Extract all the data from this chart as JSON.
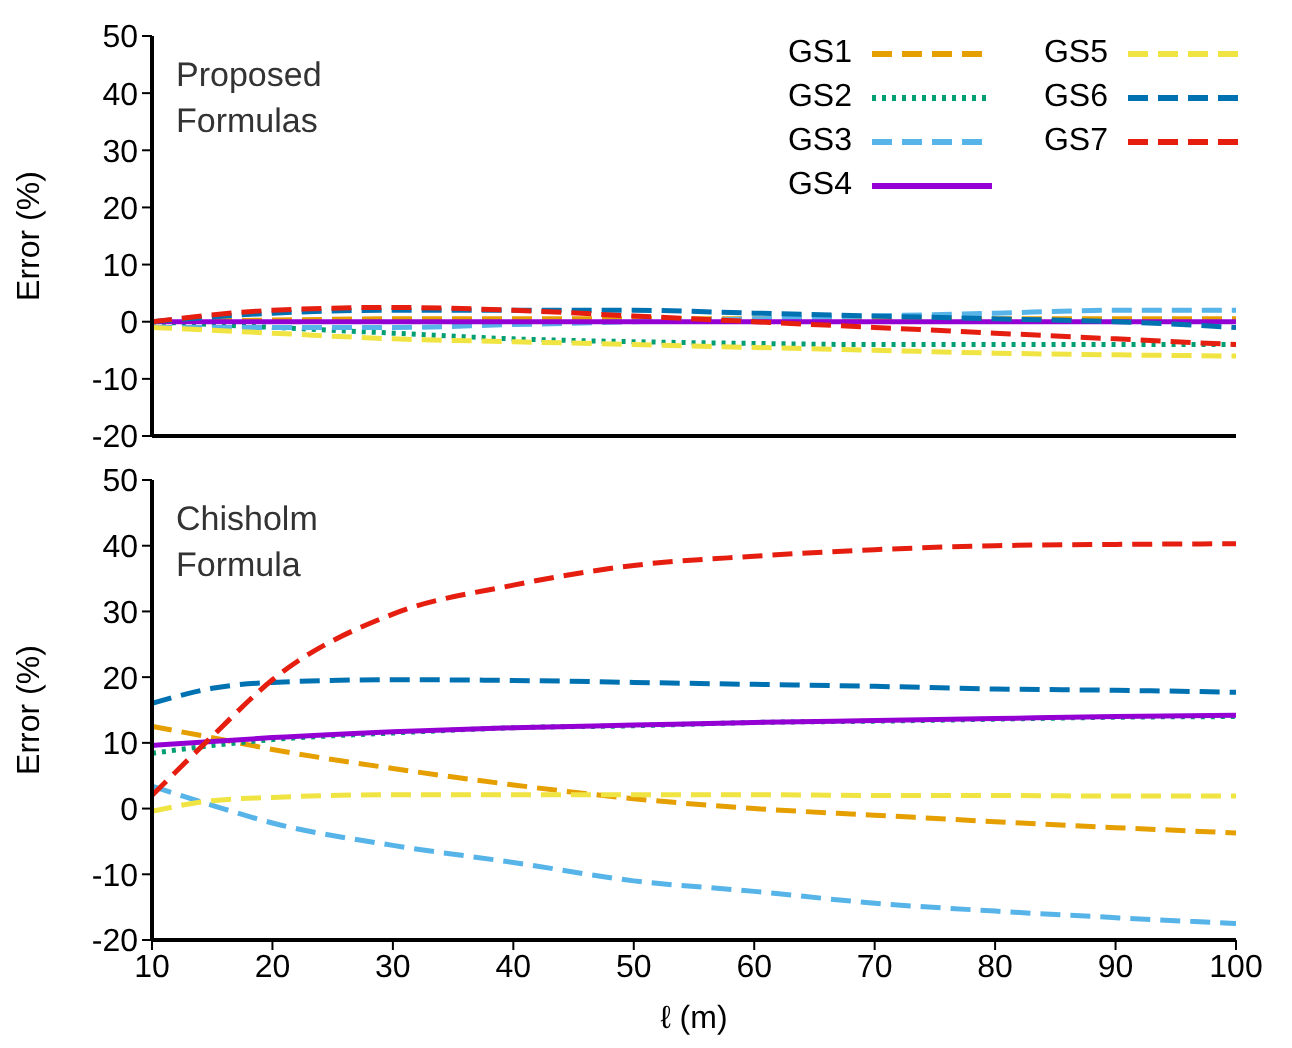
{
  "chart_data": [
    {
      "type": "line",
      "ylabel": "Error (%)",
      "annotations": [
        "Proposed Formulas"
      ],
      "x": [
        10,
        20,
        30,
        40,
        50,
        60,
        70,
        80,
        90,
        100
      ],
      "xlim": [
        10,
        100
      ],
      "xticks": [
        10,
        20,
        30,
        40,
        50,
        60,
        70,
        80,
        90,
        100
      ],
      "ylim": [
        -20,
        50
      ],
      "yticks": [
        -20,
        -10,
        0,
        10,
        20,
        30,
        40,
        50
      ],
      "tick_labels": "y",
      "grid": false,
      "legend": "top right",
      "marker": "none",
      "series": [
        {
          "name": "GS1",
          "color": "#e69f00",
          "line_style": "dashed",
          "values": [
            0,
            0.3,
            0.5,
            0.5,
            0.5,
            0.5,
            0.5,
            0.5,
            0.5,
            0.5
          ]
        },
        {
          "name": "GS2",
          "color": "#009e73",
          "line_style": "dotted",
          "values": [
            0,
            -1,
            -2,
            -3,
            -3.5,
            -3.8,
            -4,
            -4,
            -4,
            -4
          ]
        },
        {
          "name": "GS3",
          "color": "#56b4e9",
          "line_style": "dashed",
          "values": [
            -1,
            -1,
            -1,
            -0.5,
            0,
            0.5,
            1,
            1.5,
            2,
            2
          ]
        },
        {
          "name": "GS4",
          "color": "#9400d3",
          "line_style": "solid",
          "values": [
            0,
            0,
            0,
            0,
            0,
            0,
            0,
            0,
            0,
            0
          ]
        },
        {
          "name": "GS5",
          "color": "#f0e442",
          "line_style": "dashed",
          "values": [
            -1,
            -2,
            -3,
            -3.5,
            -4,
            -4.5,
            -5,
            -5.5,
            -5.8,
            -6
          ]
        },
        {
          "name": "GS6",
          "color": "#0072b2",
          "line_style": "dashed",
          "values": [
            0,
            1.5,
            2,
            2,
            2,
            1.5,
            1,
            0.5,
            0,
            -1
          ]
        },
        {
          "name": "GS7",
          "color": "#e51e10",
          "line_style": "dashed",
          "values": [
            0,
            2,
            2.5,
            2,
            1,
            0,
            -1,
            -2,
            -3,
            -4
          ]
        }
      ]
    },
    {
      "type": "line",
      "xlabel": "ℓ (m)",
      "ylabel": "Error (%)",
      "annotations": [
        "Chisholm Formula"
      ],
      "x": [
        10,
        15,
        20,
        30,
        40,
        50,
        60,
        70,
        80,
        90,
        100
      ],
      "xlim": [
        10,
        100
      ],
      "xticks": [
        10,
        20,
        30,
        40,
        50,
        60,
        70,
        80,
        90,
        100
      ],
      "ylim": [
        -20,
        50
      ],
      "yticks": [
        -20,
        -10,
        0,
        10,
        20,
        30,
        40,
        50
      ],
      "grid": false,
      "marker": "none",
      "series": [
        {
          "color": "#e69f00",
          "line_style": "dashed",
          "values": [
            12.5,
            10.8,
            9,
            6.1,
            3.6,
            1.5,
            0,
            -1,
            -2,
            -2.9,
            -3.7
          ]
        },
        {
          "color": "#009e73",
          "line_style": "dotted",
          "values": [
            8.4,
            9.6,
            10.5,
            11.5,
            12.3,
            12.6,
            13.1,
            13.3,
            13.6,
            13.9,
            14
          ]
        },
        {
          "color": "#56b4e9",
          "line_style": "dashed",
          "values": [
            3.4,
            0.5,
            -2.2,
            -5.6,
            -8.2,
            -11,
            -12.6,
            -14.4,
            -15.6,
            -16.6,
            -17.5
          ]
        },
        {
          "color": "#9400d3",
          "line_style": "solid",
          "values": [
            9.6,
            10.2,
            10.8,
            11.7,
            12.3,
            12.7,
            13.1,
            13.4,
            13.7,
            14,
            14.2
          ]
        },
        {
          "color": "#f0e442",
          "line_style": "dashed",
          "values": [
            -0.4,
            1.2,
            1.7,
            2.1,
            2.1,
            2.1,
            2.1,
            2,
            2,
            1.9,
            1.9
          ]
        },
        {
          "color": "#0072b2",
          "line_style": "dashed",
          "values": [
            16,
            18.3,
            19.2,
            19.6,
            19.5,
            19.2,
            18.9,
            18.6,
            18.2,
            18,
            17.7
          ]
        },
        {
          "color": "#e51e10",
          "line_style": "dashed",
          "values": [
            2,
            11,
            19.6,
            29.6,
            34,
            37,
            38.4,
            39.4,
            40,
            40.2,
            40.3
          ]
        }
      ]
    }
  ]
}
